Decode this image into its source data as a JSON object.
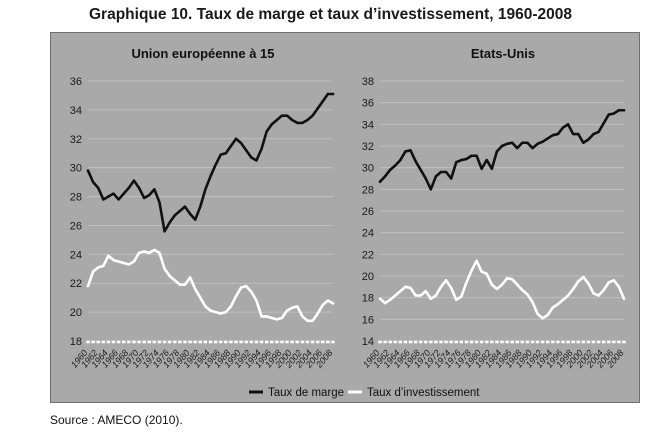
{
  "figure": {
    "title": "Graphique 10. Taux de marge et taux d’investissement, 1960-2008",
    "source": "Source : AMECO (2010)."
  },
  "colors": {
    "background": "#a9a9a9",
    "margin_series": "#111111",
    "investment_series": "#ffffff",
    "grid": "#c4c4c4",
    "axis_dashes": "#ffffff"
  },
  "legend": {
    "items": [
      {
        "label": "Taux de marge",
        "color": "#111111"
      },
      {
        "label": "Taux d’investissement",
        "color": "#ffffff"
      }
    ]
  },
  "chart_data": [
    {
      "type": "line",
      "title": "Union européenne à 15",
      "xlim": [
        1960,
        2008
      ],
      "ylim": [
        18,
        36
      ],
      "yticks": [
        18,
        20,
        22,
        24,
        26,
        28,
        30,
        32,
        34,
        36
      ],
      "xticks": [
        1960,
        1962,
        1964,
        1966,
        1968,
        1970,
        1972,
        1974,
        1976,
        1978,
        1980,
        1982,
        1984,
        1986,
        1988,
        1990,
        1992,
        1994,
        1996,
        1998,
        2000,
        2002,
        2004,
        2006,
        2008
      ],
      "grid": true,
      "legend_position": "bottom",
      "x": [
        1960,
        1961,
        1962,
        1963,
        1964,
        1965,
        1966,
        1967,
        1968,
        1969,
        1970,
        1971,
        1972,
        1973,
        1974,
        1975,
        1976,
        1977,
        1978,
        1979,
        1980,
        1981,
        1982,
        1983,
        1984,
        1985,
        1986,
        1987,
        1988,
        1989,
        1990,
        1991,
        1992,
        1993,
        1994,
        1995,
        1996,
        1997,
        1998,
        1999,
        2000,
        2001,
        2002,
        2003,
        2004,
        2005,
        2006,
        2007,
        2008
      ],
      "series": [
        {
          "name": "Taux de marge",
          "values": [
            29.8,
            29.0,
            28.6,
            27.8,
            28.0,
            28.2,
            27.8,
            28.2,
            28.6,
            29.1,
            28.6,
            27.9,
            28.1,
            28.5,
            27.6,
            25.6,
            26.2,
            26.7,
            27.0,
            27.3,
            26.8,
            26.4,
            27.3,
            28.5,
            29.4,
            30.2,
            30.9,
            31.0,
            31.5,
            32.0,
            31.7,
            31.2,
            30.7,
            30.5,
            31.3,
            32.5,
            33.0,
            33.3,
            33.6,
            33.6,
            33.3,
            33.1,
            33.1,
            33.3,
            33.6,
            34.1,
            34.6,
            35.1,
            35.1
          ]
        },
        {
          "name": "Taux d’investissement",
          "values": [
            21.8,
            22.8,
            23.1,
            23.2,
            23.9,
            23.6,
            23.5,
            23.4,
            23.3,
            23.5,
            24.1,
            24.2,
            24.1,
            24.3,
            24.1,
            23.0,
            22.5,
            22.2,
            21.9,
            21.9,
            22.4,
            21.6,
            21.0,
            20.4,
            20.1,
            20.0,
            19.9,
            20.0,
            20.4,
            21.1,
            21.7,
            21.8,
            21.4,
            20.8,
            19.7,
            19.7,
            19.6,
            19.5,
            19.6,
            20.1,
            20.3,
            20.4,
            19.7,
            19.4,
            19.4,
            19.9,
            20.5,
            20.8,
            20.6
          ]
        }
      ]
    },
    {
      "type": "line",
      "title": "Etats-Unis",
      "xlim": [
        1960,
        2008
      ],
      "ylim": [
        14,
        38
      ],
      "yticks": [
        14,
        16,
        18,
        20,
        22,
        24,
        26,
        28,
        30,
        32,
        34,
        36,
        38
      ],
      "xticks": [
        1960,
        1962,
        1964,
        1966,
        1968,
        1970,
        1972,
        1974,
        1976,
        1978,
        1980,
        1982,
        1984,
        1986,
        1988,
        1990,
        1992,
        1994,
        1996,
        1998,
        2000,
        2002,
        2004,
        2006,
        2008
      ],
      "grid": true,
      "legend_position": "bottom",
      "x": [
        1960,
        1961,
        1962,
        1963,
        1964,
        1965,
        1966,
        1967,
        1968,
        1969,
        1970,
        1971,
        1972,
        1973,
        1974,
        1975,
        1976,
        1977,
        1978,
        1979,
        1980,
        1981,
        1982,
        1983,
        1984,
        1985,
        1986,
        1987,
        1988,
        1989,
        1990,
        1991,
        1992,
        1993,
        1994,
        1995,
        1996,
        1997,
        1998,
        1999,
        2000,
        2001,
        2002,
        2003,
        2004,
        2005,
        2006,
        2007,
        2008
      ],
      "series": [
        {
          "name": "Taux de marge",
          "values": [
            28.7,
            29.2,
            29.8,
            30.2,
            30.7,
            31.5,
            31.6,
            30.6,
            29.8,
            29.0,
            28.0,
            29.2,
            29.6,
            29.6,
            29.0,
            30.5,
            30.7,
            30.8,
            31.1,
            31.1,
            29.9,
            30.7,
            29.9,
            31.5,
            32.0,
            32.2,
            32.3,
            31.8,
            32.3,
            32.3,
            31.8,
            32.2,
            32.4,
            32.7,
            33.0,
            33.1,
            33.7,
            34.0,
            33.1,
            33.1,
            32.3,
            32.6,
            33.1,
            33.3,
            34.1,
            34.9,
            35.0,
            35.3,
            35.3
          ]
        },
        {
          "name": "Taux d’investissement",
          "values": [
            17.9,
            17.5,
            17.8,
            18.2,
            18.6,
            19.0,
            18.9,
            18.2,
            18.2,
            18.6,
            17.9,
            18.2,
            19.0,
            19.6,
            18.9,
            17.8,
            18.1,
            19.4,
            20.5,
            21.4,
            20.4,
            20.2,
            19.2,
            18.8,
            19.2,
            19.8,
            19.7,
            19.2,
            18.7,
            18.3,
            17.6,
            16.5,
            16.1,
            16.4,
            17.1,
            17.4,
            17.8,
            18.2,
            18.8,
            19.5,
            19.9,
            19.3,
            18.4,
            18.2,
            18.7,
            19.4,
            19.6,
            19.0,
            17.9
          ]
        }
      ]
    }
  ]
}
